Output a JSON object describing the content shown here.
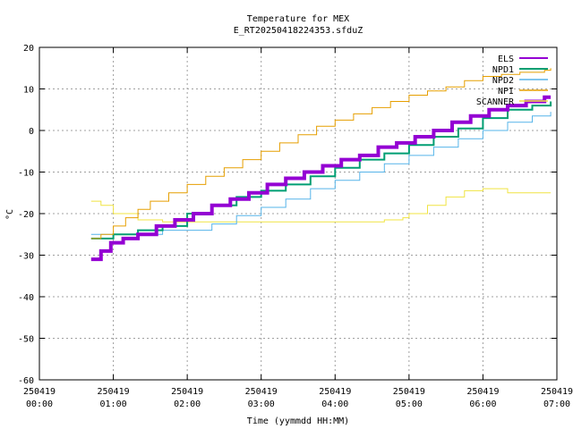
{
  "chart_data": {
    "type": "line",
    "title": "Temperature for MEX",
    "subtitle": "E_RT20250418224353.sfduZ",
    "xlabel": "Time (yymmdd HH:MM)",
    "ylabel": "°C",
    "xlim": [
      "250419 00:00",
      "250419 07:00"
    ],
    "ylim": [
      -60,
      20
    ],
    "grid": true,
    "legend_position": "top-right",
    "x_ticks": [
      {
        "date": "250419",
        "time": "00:00"
      },
      {
        "date": "250419",
        "time": "01:00"
      },
      {
        "date": "250419",
        "time": "02:00"
      },
      {
        "date": "250419",
        "time": "03:00"
      },
      {
        "date": "250419",
        "time": "04:00"
      },
      {
        "date": "250419",
        "time": "05:00"
      },
      {
        "date": "250419",
        "time": "06:00"
      },
      {
        "date": "250419",
        "time": "07:00"
      }
    ],
    "y_ticks": [
      "20",
      "10",
      "0",
      "-10",
      "-20",
      "-30",
      "-40",
      "-50",
      "-60"
    ],
    "series": [
      {
        "name": "ELS",
        "color": "#9400d3",
        "width": 4,
        "x": [
          "00:42",
          "00:50",
          "00:58",
          "01:08",
          "01:20",
          "01:35",
          "01:50",
          "02:05",
          "02:20",
          "02:35",
          "02:50",
          "03:05",
          "03:20",
          "03:35",
          "03:50",
          "04:05",
          "04:20",
          "04:35",
          "04:50",
          "05:05",
          "05:20",
          "05:35",
          "05:50",
          "06:05",
          "06:20",
          "06:35",
          "06:50",
          "06:55"
        ],
        "y": [
          -31,
          -29,
          -27,
          -26,
          -25,
          -23,
          -21.5,
          -20,
          -18,
          -16.5,
          -15,
          -13,
          -11.5,
          -10,
          -8.5,
          -7,
          -6,
          -4,
          -3,
          -1.5,
          0,
          2,
          3.5,
          5,
          6,
          7,
          8,
          8
        ]
      },
      {
        "name": "NPD1",
        "color": "#009e73",
        "width": 2,
        "x": [
          "00:42",
          "01:00",
          "01:20",
          "01:40",
          "02:00",
          "02:20",
          "02:40",
          "03:00",
          "03:20",
          "03:40",
          "04:00",
          "04:20",
          "04:40",
          "05:00",
          "05:20",
          "05:40",
          "06:00",
          "06:20",
          "06:40",
          "06:55"
        ],
        "y": [
          -26,
          -25,
          -24,
          -23,
          -20,
          -18,
          -16,
          -14.5,
          -13,
          -11,
          -9,
          -7,
          -5.5,
          -3.5,
          -1.5,
          0.5,
          3,
          5,
          6,
          7
        ]
      },
      {
        "name": "NPD2",
        "color": "#56b4e9",
        "width": 1,
        "x": [
          "00:42",
          "01:00",
          "01:20",
          "01:40",
          "02:00",
          "02:20",
          "02:40",
          "03:00",
          "03:20",
          "03:40",
          "04:00",
          "04:20",
          "04:40",
          "05:00",
          "05:20",
          "05:40",
          "06:00",
          "06:20",
          "06:40",
          "06:55"
        ],
        "y": [
          -25,
          -25,
          -25,
          -24,
          -24,
          -22.5,
          -20.5,
          -18.5,
          -16.5,
          -14,
          -12,
          -10,
          -8,
          -6,
          -4,
          -2,
          0,
          2,
          3.5,
          4.5
        ]
      },
      {
        "name": "NPI",
        "color": "#e69f00",
        "width": 1,
        "x": [
          "00:42",
          "00:50",
          "01:00",
          "01:10",
          "01:20",
          "01:30",
          "01:45",
          "02:00",
          "02:15",
          "02:30",
          "02:45",
          "03:00",
          "03:15",
          "03:30",
          "03:45",
          "04:00",
          "04:15",
          "04:30",
          "04:45",
          "05:00",
          "05:15",
          "05:30",
          "05:45",
          "06:00",
          "06:15",
          "06:30",
          "06:50",
          "06:55"
        ],
        "y": [
          -26,
          -25,
          -23,
          -21,
          -19,
          -17,
          -15,
          -13,
          -11,
          -9,
          -7,
          -5,
          -3,
          -1,
          1,
          2.5,
          4,
          5.5,
          7,
          8.5,
          9.5,
          10.5,
          12,
          13,
          13.5,
          14,
          14.5,
          15
        ]
      },
      {
        "name": "SCANNER",
        "color": "#f0e442",
        "width": 1,
        "x": [
          "00:42",
          "00:50",
          "01:00",
          "01:20",
          "01:40",
          "02:00",
          "02:20",
          "02:40",
          "03:00",
          "03:20",
          "03:40",
          "04:00",
          "04:20",
          "04:40",
          "04:55",
          "05:00",
          "05:15",
          "05:30",
          "05:45",
          "06:00",
          "06:20",
          "06:55"
        ],
        "y": [
          -17,
          -18,
          -20,
          -21.5,
          -22,
          -22,
          -22,
          -22,
          -22,
          -22,
          -22,
          -22,
          -22,
          -21.5,
          -21,
          -20,
          -18,
          -16,
          -14.5,
          -14,
          -15,
          -15
        ]
      }
    ]
  }
}
